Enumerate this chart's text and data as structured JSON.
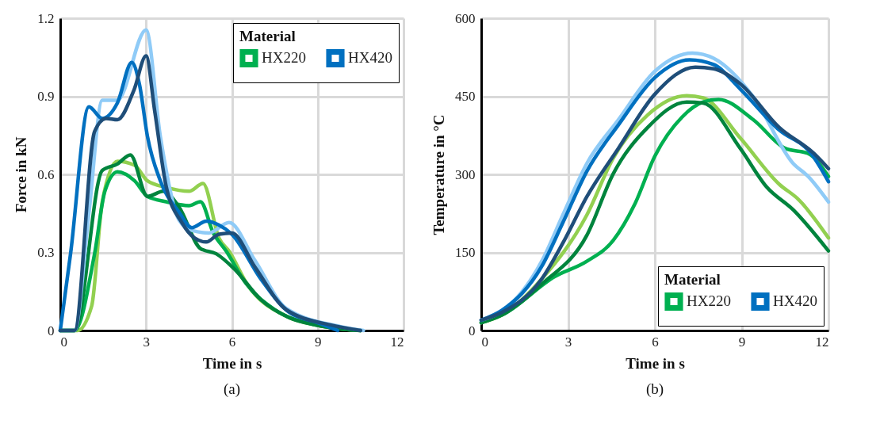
{
  "chart_data": [
    {
      "type": "line",
      "title": "(a)",
      "xlabel": "Time in s",
      "ylabel": "Force in kN",
      "legend_title": "Material",
      "legend": "top right",
      "grid": true,
      "xlim": [
        0,
        12
      ],
      "xticks": [
        0,
        3,
        6,
        9,
        12
      ],
      "ylim": [
        0,
        1.2
      ],
      "yticks": [
        0,
        0.3,
        0.6,
        0.9,
        1.2
      ],
      "series": [
        {
          "color": "#92d050",
          "x": [
            0,
            0.6,
            1.1,
            1.47,
            2.0,
            2.6,
            3.05,
            3.7,
            4.5,
            4.99,
            5.55,
            5.9,
            6.54,
            7.9,
            9,
            10.5
          ],
          "values": [
            0,
            0,
            0.095,
            0.495,
            0.65,
            0.635,
            0.575,
            0.55,
            0.535,
            0.565,
            0.355,
            0.305,
            0.177,
            0.055,
            0.02,
            0
          ]
        },
        {
          "name": "HX220",
          "color": "#00b050",
          "x": [
            0,
            0.5,
            1.2,
            1.56,
            2.0,
            2.6,
            3.05,
            3.7,
            4.5,
            4.9,
            5.35,
            5.8,
            6.5,
            7.5,
            9,
            10.5
          ],
          "values": [
            0,
            0,
            0.295,
            0.535,
            0.61,
            0.575,
            0.515,
            0.495,
            0.48,
            0.495,
            0.375,
            0.305,
            0.18,
            0.08,
            0.02,
            0
          ]
        },
        {
          "color": "#00843d",
          "x": [
            0,
            0.5,
            1.47,
            2.0,
            2.45,
            3.05,
            3.6,
            4.15,
            4.9,
            5.45,
            6.1,
            7,
            8,
            9,
            10.5
          ],
          "values": [
            0,
            0,
            0.615,
            0.64,
            0.675,
            0.515,
            0.535,
            0.475,
            0.315,
            0.295,
            0.235,
            0.12,
            0.05,
            0.02,
            0
          ]
        },
        {
          "color": "#8fcbf7",
          "x": [
            0,
            0.5,
            1.0,
            1.47,
            2.0,
            3.0,
            3.5,
            4.15,
            4.6,
            5.2,
            5.9,
            6.8,
            7.9,
            9.8,
            10.6
          ],
          "values": [
            0,
            0,
            0.45,
            0.885,
            0.885,
            1.155,
            0.745,
            0.425,
            0.385,
            0.375,
            0.415,
            0.27,
            0.085,
            0.015,
            0
          ]
        },
        {
          "name": "HX420",
          "color": "#0070c0",
          "x": [
            0,
            0.36,
            1.0,
            1.47,
            2.0,
            2.5,
            2.77,
            3.05,
            3.5,
            4.15,
            4.6,
            5.1,
            5.55,
            6.0,
            7,
            8,
            9,
            9.7
          ],
          "values": [
            0,
            0.295,
            0.86,
            0.815,
            0.875,
            1.03,
            0.945,
            0.745,
            0.575,
            0.455,
            0.395,
            0.42,
            0.405,
            0.37,
            0.2,
            0.07,
            0.03,
            0
          ]
        },
        {
          "color": "#1f4e79",
          "x": [
            0,
            0.5,
            1.2,
            1.6,
            2.0,
            2.58,
            3.0,
            3.3,
            3.7,
            4.25,
            4.7,
            5.1,
            5.55,
            6.0,
            6.8,
            7.9,
            9.5,
            10.5
          ],
          "values": [
            0,
            0,
            0.765,
            0.815,
            0.81,
            0.925,
            1.055,
            0.845,
            0.555,
            0.415,
            0.355,
            0.34,
            0.37,
            0.375,
            0.245,
            0.08,
            0.02,
            0
          ]
        }
      ]
    },
    {
      "type": "line",
      "title": "(b)",
      "xlabel": "Time in s",
      "ylabel": "Temperature in °C",
      "legend_title": "Material",
      "legend": "bottom right",
      "grid": true,
      "xlim": [
        0,
        12
      ],
      "xticks": [
        0,
        3,
        6,
        9,
        12
      ],
      "ylim": [
        0,
        600
      ],
      "yticks": [
        0,
        150,
        300,
        450,
        600
      ],
      "series": [
        {
          "color": "#92d050",
          "x": [
            0,
            0.72,
            2.09,
            3.65,
            4.56,
            5.75,
            7.1,
            7.67,
            8.95,
            10.3,
            10.96,
            12
          ],
          "values": [
            15,
            30,
            99,
            222,
            331,
            414,
            451,
            447,
            370,
            281,
            252,
            178
          ]
        },
        {
          "name": "HX220",
          "color": "#00b050",
          "x": [
            0,
            0.72,
            2.55,
            3.65,
            4.56,
            5.3,
            6.0,
            6.94,
            7.67,
            8.2,
            9.4,
            10.5,
            11.3,
            12
          ],
          "values": [
            15,
            30,
            104,
            133,
            173,
            242,
            335,
            410,
            439,
            444,
            405,
            350,
            340,
            296
          ]
        },
        {
          "color": "#00843d",
          "x": [
            0,
            0.72,
            2.09,
            3.65,
            4.56,
            5.75,
            7.1,
            7.67,
            8.95,
            9.86,
            10.78,
            12
          ],
          "values": [
            15,
            30,
            89,
            183,
            301,
            390,
            439,
            437,
            350,
            276,
            232,
            153
          ]
        },
        {
          "color": "#8fcbf7",
          "x": [
            0,
            0.72,
            2.09,
            2.82,
            3.65,
            4.74,
            6.0,
            7.3,
            8.03,
            9.4,
            10.78,
            11.3,
            12
          ],
          "values": [
            20,
            37,
            133,
            222,
            321,
            405,
            498,
            533,
            523,
            449,
            321,
            296,
            247
          ]
        },
        {
          "name": "HX420",
          "color": "#0070c0",
          "x": [
            0,
            0.72,
            2.09,
            2.82,
            3.65,
            4.74,
            6.0,
            7.2,
            8.03,
            8.95,
            10.3,
            11.4,
            12
          ],
          "values": [
            20,
            39,
            123,
            207,
            306,
            395,
            486,
            520,
            511,
            464,
            385,
            340,
            286
          ]
        },
        {
          "color": "#1f4e79",
          "x": [
            0,
            0.72,
            2.09,
            2.82,
            3.65,
            4.74,
            6.0,
            7.4,
            8.03,
            8.95,
            10.3,
            11.5,
            12
          ],
          "values": [
            20,
            35,
            99,
            168,
            257,
            350,
            454,
            506,
            503,
            474,
            390,
            340,
            311
          ]
        }
      ]
    }
  ]
}
